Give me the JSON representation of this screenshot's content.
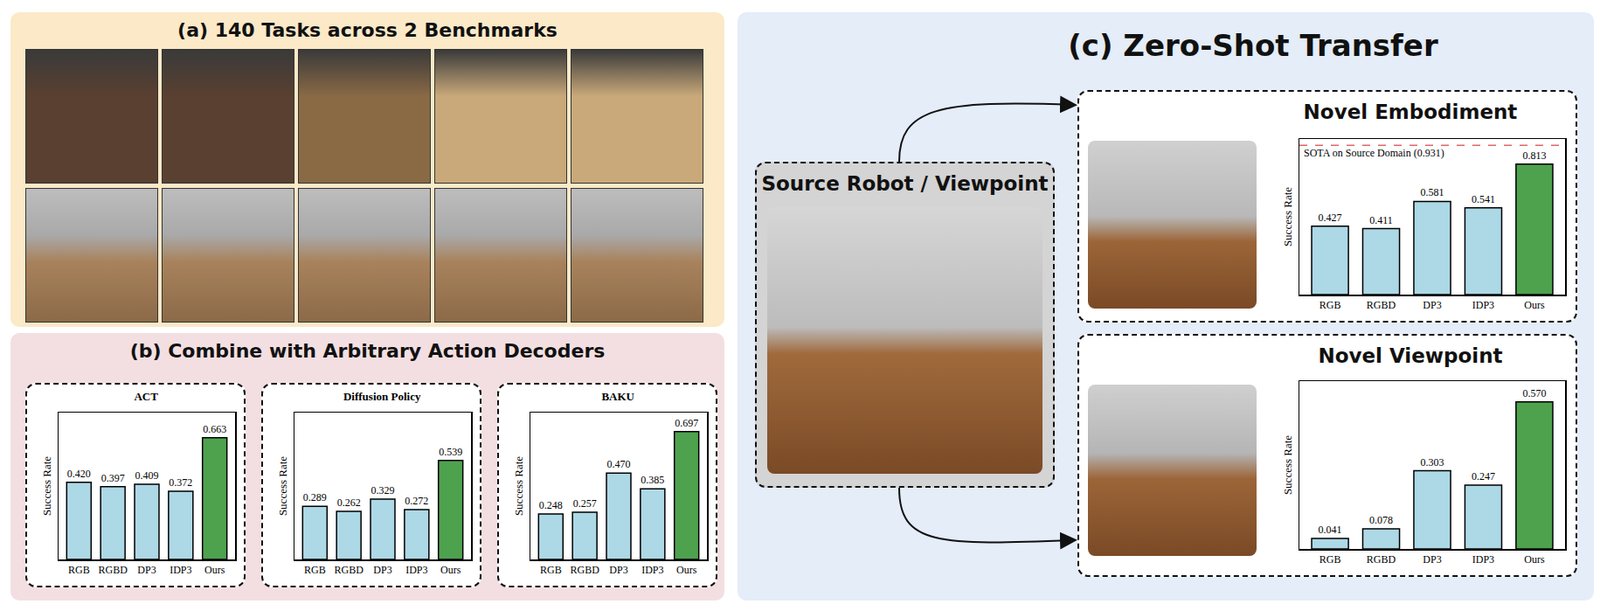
{
  "panels": {
    "a": "(a) 140 Tasks across 2 Benchmarks",
    "b": "(b) Combine with Arbitrary Action Decoders",
    "c": "(c) Zero-Shot Transfer",
    "source": "Source Robot / Viewpoint"
  },
  "chart_data": [
    {
      "type": "bar",
      "title": "ACT",
      "y_label": "Success Rate",
      "categories": [
        "RGB",
        "RGBD",
        "DP3",
        "IDP3",
        "Ours"
      ],
      "values": [
        0.42,
        0.397,
        0.409,
        0.372,
        0.663
      ],
      "value_labels": [
        "0.420",
        "0.397",
        "0.409",
        "0.372",
        "0.663"
      ],
      "colors": [
        "#add8e6",
        "#add8e6",
        "#add8e6",
        "#add8e6",
        "#4ea24e"
      ],
      "ylim": [
        0,
        0.8
      ],
      "data_labels": true,
      "tick_labels": "x",
      "grid": false
    },
    {
      "type": "bar",
      "title": "Diffusion Policy",
      "y_label": "Success Rate",
      "categories": [
        "RGB",
        "RGBD",
        "DP3",
        "IDP3",
        "Ours"
      ],
      "values": [
        0.289,
        0.262,
        0.329,
        0.272,
        0.539
      ],
      "value_labels": [
        "0.289",
        "0.262",
        "0.329",
        "0.272",
        "0.539"
      ],
      "colors": [
        "#add8e6",
        "#add8e6",
        "#add8e6",
        "#add8e6",
        "#4ea24e"
      ],
      "ylim": [
        0,
        0.8
      ],
      "data_labels": true,
      "tick_labels": "x",
      "grid": false
    },
    {
      "type": "bar",
      "title": "BAKU",
      "y_label": "Success Rate",
      "categories": [
        "RGB",
        "RGBD",
        "DP3",
        "IDP3",
        "Ours"
      ],
      "values": [
        0.248,
        0.257,
        0.47,
        0.385,
        0.697
      ],
      "value_labels": [
        "0.248",
        "0.257",
        "0.470",
        "0.385",
        "0.697"
      ],
      "colors": [
        "#add8e6",
        "#add8e6",
        "#add8e6",
        "#add8e6",
        "#4ea24e"
      ],
      "ylim": [
        0,
        0.8
      ],
      "data_labels": true,
      "tick_labels": "x",
      "grid": false
    },
    {
      "type": "bar",
      "title": "Novel Embodiment",
      "y_label": "Success Rate",
      "categories": [
        "RGB",
        "RGBD",
        "DP3",
        "IDP3",
        "Ours"
      ],
      "values": [
        0.427,
        0.411,
        0.581,
        0.541,
        0.813
      ],
      "value_labels": [
        "0.427",
        "0.411",
        "0.581",
        "0.541",
        "0.813"
      ],
      "colors": [
        "#add8e6",
        "#add8e6",
        "#add8e6",
        "#add8e6",
        "#4ea24e"
      ],
      "reference": {
        "value": 0.931,
        "label": "SOTA on Source Domain (0.931)",
        "color": "#e06666"
      },
      "ylim": [
        0,
        0.97
      ],
      "data_labels": true,
      "tick_labels": "x",
      "grid": false
    },
    {
      "type": "bar",
      "title": "Novel Viewpoint",
      "y_label": "Success Rate",
      "categories": [
        "RGB",
        "RGBD",
        "DP3",
        "IDP3",
        "Ours"
      ],
      "values": [
        0.041,
        0.078,
        0.303,
        0.247,
        0.57
      ],
      "value_labels": [
        "0.041",
        "0.078",
        "0.303",
        "0.247",
        "0.570"
      ],
      "colors": [
        "#add8e6",
        "#add8e6",
        "#add8e6",
        "#add8e6",
        "#4ea24e"
      ],
      "ylim": [
        0,
        0.65
      ],
      "data_labels": true,
      "tick_labels": "x",
      "grid": false
    }
  ]
}
